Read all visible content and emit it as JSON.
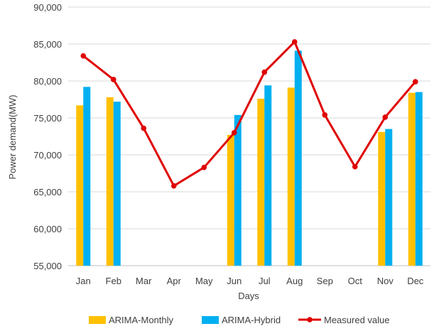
{
  "chart_data": {
    "type": "bar",
    "title": "",
    "xlabel": "Days",
    "ylabel": "Power demand(MW)",
    "ylim": [
      55000,
      90000
    ],
    "yticks": [
      55000,
      60000,
      65000,
      70000,
      75000,
      80000,
      85000,
      90000
    ],
    "ytick_labels": [
      "55,000",
      "60,000",
      "65,000",
      "70,000",
      "75,000",
      "80,000",
      "85,000",
      "90,000"
    ],
    "grid": true,
    "legend_position": "bottom",
    "categories": [
      "Jan",
      "Feb",
      "Mar",
      "Apr",
      "May",
      "Jun",
      "Jul",
      "Aug",
      "Sep",
      "Oct",
      "Nov",
      "Dec"
    ],
    "series": [
      {
        "name": "ARIMA-Monthly",
        "type": "bar",
        "color": "#FFC000",
        "values": [
          76700,
          77800,
          null,
          null,
          null,
          72700,
          77600,
          79100,
          null,
          null,
          73100,
          78400
        ]
      },
      {
        "name": "ARIMA-Hybrid",
        "type": "bar",
        "color": "#00B0F0",
        "values": [
          79200,
          77200,
          null,
          null,
          null,
          75400,
          79400,
          84100,
          null,
          null,
          73500,
          78500
        ]
      },
      {
        "name": "Measured value",
        "type": "line",
        "color": "#E00000",
        "values": [
          83400,
          80200,
          73600,
          65800,
          68300,
          73000,
          81200,
          85300,
          75400,
          68400,
          75100,
          79900
        ]
      }
    ]
  }
}
